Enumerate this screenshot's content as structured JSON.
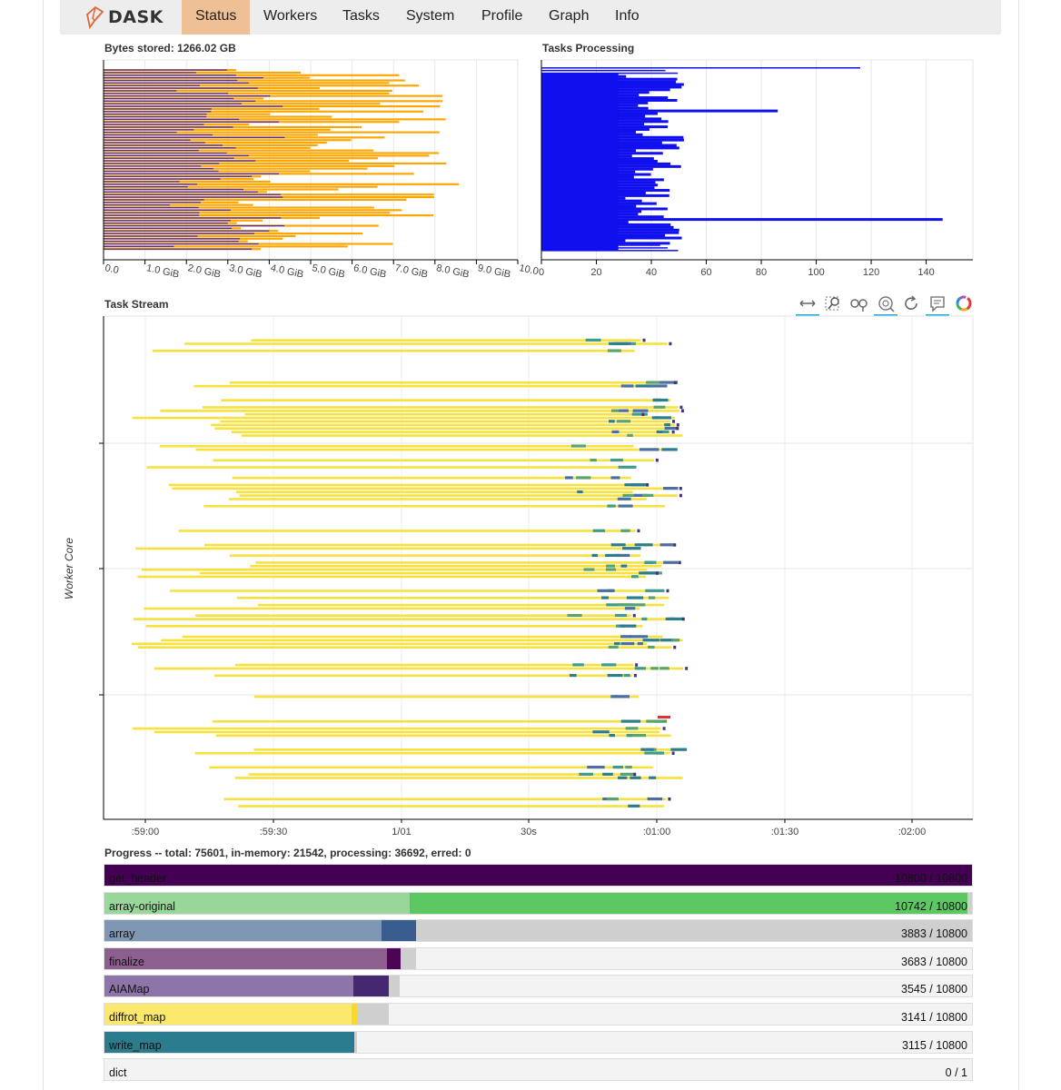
{
  "nav": {
    "brand": "DASK",
    "tabs": [
      "Status",
      "Workers",
      "Tasks",
      "System",
      "Profile",
      "Graph",
      "Info"
    ],
    "active": "Status"
  },
  "bytes_stored": {
    "title": "Bytes stored: 1266.02 GB",
    "ticks": [
      "0.0",
      "1.0 GiB",
      "2.0 GiB",
      "3.0 GiB",
      "4.0 GiB",
      "5.0 GiB",
      "6.0 GiB",
      "7.0 GiB",
      "8.0 GiB",
      "9.0 GiB",
      "10.0"
    ]
  },
  "tasks_processing": {
    "title": "Tasks Processing",
    "ticks": [
      "0",
      "20",
      "40",
      "60",
      "80",
      "100",
      "120",
      "140"
    ]
  },
  "task_stream": {
    "title": "Task Stream",
    "ylabel": "Worker Core",
    "ticks": [
      ":59:00",
      ":59:30",
      "1/01",
      "30s",
      ":01:00",
      ":01:30",
      ":02:00"
    ],
    "tools": [
      "pan-tool",
      "box-zoom-tool",
      "wheel-zoom-tool",
      "wheel-zoom-active-tool",
      "reset-tool",
      "hover-tool",
      "bokeh-logo"
    ]
  },
  "progress": {
    "title": "Progress -- total: 75601, in-memory: 21542, processing: 36692, erred: 0",
    "rows": [
      {
        "name": "get_header",
        "done": 10800,
        "mem": 10800,
        "proc": 0,
        "total": 10800,
        "count": "10800 / 10800",
        "color": "#440154",
        "mem_color": "#440154"
      },
      {
        "name": "array-original",
        "done": 3800,
        "mem": 10742,
        "proc": 10800,
        "total": 10800,
        "count": "10742 / 10800",
        "color": "#98d69a",
        "mem_color": "#5bc862"
      },
      {
        "name": "array",
        "done": 3450,
        "mem": 3883,
        "proc": 10800,
        "total": 10800,
        "count": "3883 / 10800",
        "color": "#7e97b5",
        "mem_color": "#3a5d90"
      },
      {
        "name": "finalize",
        "done": 3520,
        "mem": 3683,
        "proc": 3880,
        "total": 10800,
        "count": "3683 / 10800",
        "color": "#8c5f8f",
        "mem_color": "#4c0454"
      },
      {
        "name": "AIAMap",
        "done": 3100,
        "mem": 3545,
        "proc": 3680,
        "total": 10800,
        "count": "3545 / 10800",
        "color": "#8d74a9",
        "mem_color": "#452870"
      },
      {
        "name": "diffrot_map",
        "done": 3080,
        "mem": 3141,
        "proc": 3540,
        "total": 10800,
        "count": "3141 / 10800",
        "color": "#fce86c",
        "mem_color": "#f6d92a"
      },
      {
        "name": "write_map",
        "done": 3060,
        "mem": 3115,
        "proc": 3140,
        "total": 10800,
        "count": "3115 / 10800",
        "color": "#2b7d8e",
        "mem_color": "#2a788e"
      },
      {
        "name": "dict",
        "done": 0,
        "mem": 0,
        "proc": 0,
        "total": 1,
        "count": "0 / 1",
        "color": "#888888",
        "mem_color": "#888888"
      }
    ]
  },
  "colors": {
    "orange": "#ffa500",
    "purple_bar": "#4b2ea8",
    "blue": "#1010ee",
    "nav_bg": "#ededed",
    "active_tab": "#efbf95",
    "stream_yellow": "#f8e13c"
  }
}
